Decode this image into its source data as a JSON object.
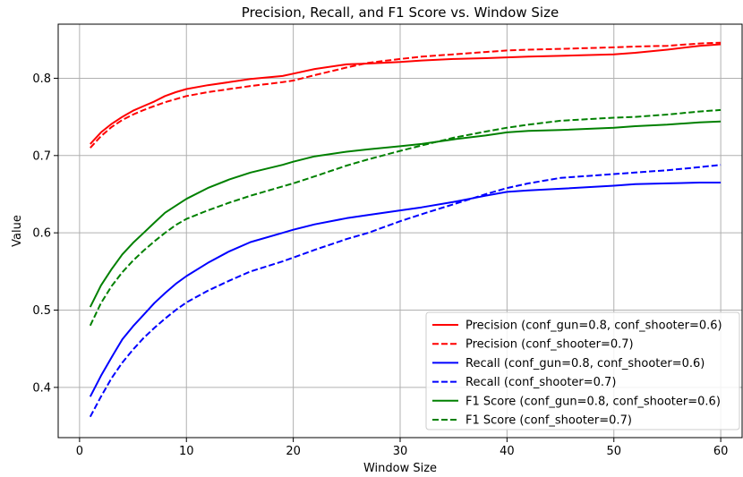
{
  "chart_data": {
    "type": "line",
    "title": "Precision, Recall, and F1 Score vs. Window Size",
    "xlabel": "Window Size",
    "ylabel": "Value",
    "xlim": [
      -2,
      62
    ],
    "ylim": [
      0.335,
      0.87
    ],
    "xticks": [
      0,
      10,
      20,
      30,
      40,
      50,
      60
    ],
    "yticks": [
      0.4,
      0.5,
      0.6,
      0.7,
      0.8
    ],
    "grid": true,
    "legend_position": "lower-right",
    "x": [
      1,
      2,
      3,
      4,
      5,
      6,
      7,
      8,
      9,
      10,
      12,
      14,
      16,
      19,
      20,
      22,
      25,
      27,
      30,
      32,
      35,
      38,
      40,
      42,
      45,
      50,
      52,
      55,
      58,
      60
    ],
    "series": [
      {
        "name": "Precision (conf_gun=0.8, conf_shooter=0.6)",
        "color": "#ff0000",
        "dash": "solid",
        "values": [
          0.715,
          0.73,
          0.741,
          0.75,
          0.758,
          0.764,
          0.77,
          0.777,
          0.782,
          0.786,
          0.791,
          0.795,
          0.799,
          0.803,
          0.806,
          0.812,
          0.818,
          0.819,
          0.821,
          0.823,
          0.825,
          0.826,
          0.827,
          0.828,
          0.829,
          0.831,
          0.833,
          0.837,
          0.842,
          0.844
        ]
      },
      {
        "name": "Precision (conf_shooter=0.7)",
        "color": "#ff0000",
        "dash": "dashed",
        "values": [
          0.71,
          0.725,
          0.737,
          0.746,
          0.753,
          0.759,
          0.764,
          0.769,
          0.773,
          0.777,
          0.782,
          0.786,
          0.79,
          0.795,
          0.797,
          0.804,
          0.814,
          0.82,
          0.825,
          0.828,
          0.831,
          0.834,
          0.836,
          0.837,
          0.838,
          0.84,
          0.841,
          0.842,
          0.845,
          0.846
        ]
      },
      {
        "name": "Recall (conf_gun=0.8, conf_shooter=0.6)",
        "color": "#0000ff",
        "dash": "solid",
        "values": [
          0.388,
          0.415,
          0.439,
          0.462,
          0.479,
          0.494,
          0.509,
          0.522,
          0.534,
          0.544,
          0.561,
          0.576,
          0.588,
          0.6,
          0.604,
          0.611,
          0.619,
          0.623,
          0.629,
          0.633,
          0.64,
          0.648,
          0.653,
          0.655,
          0.657,
          0.661,
          0.663,
          0.664,
          0.665,
          0.665
        ]
      },
      {
        "name": "Recall (conf_shooter=0.7)",
        "color": "#0000ff",
        "dash": "dashed",
        "values": [
          0.362,
          0.388,
          0.412,
          0.432,
          0.449,
          0.464,
          0.477,
          0.489,
          0.5,
          0.51,
          0.525,
          0.538,
          0.55,
          0.563,
          0.568,
          0.578,
          0.592,
          0.6,
          0.615,
          0.624,
          0.637,
          0.65,
          0.658,
          0.664,
          0.671,
          0.676,
          0.678,
          0.681,
          0.685,
          0.688
        ]
      },
      {
        "name": "F1 Score (conf_gun=0.8, conf_shooter=0.6)",
        "color": "#008000",
        "dash": "solid",
        "values": [
          0.504,
          0.532,
          0.553,
          0.572,
          0.587,
          0.6,
          0.613,
          0.626,
          0.635,
          0.644,
          0.658,
          0.669,
          0.678,
          0.688,
          0.692,
          0.699,
          0.705,
          0.708,
          0.712,
          0.715,
          0.721,
          0.726,
          0.73,
          0.732,
          0.733,
          0.736,
          0.738,
          0.74,
          0.743,
          0.744
        ]
      },
      {
        "name": "F1 Score (conf_shooter=0.7)",
        "color": "#008000",
        "dash": "dashed",
        "values": [
          0.48,
          0.509,
          0.531,
          0.549,
          0.564,
          0.577,
          0.589,
          0.6,
          0.61,
          0.618,
          0.629,
          0.639,
          0.648,
          0.66,
          0.664,
          0.673,
          0.687,
          0.695,
          0.706,
          0.713,
          0.723,
          0.731,
          0.736,
          0.74,
          0.745,
          0.749,
          0.75,
          0.753,
          0.757,
          0.759
        ]
      }
    ]
  }
}
